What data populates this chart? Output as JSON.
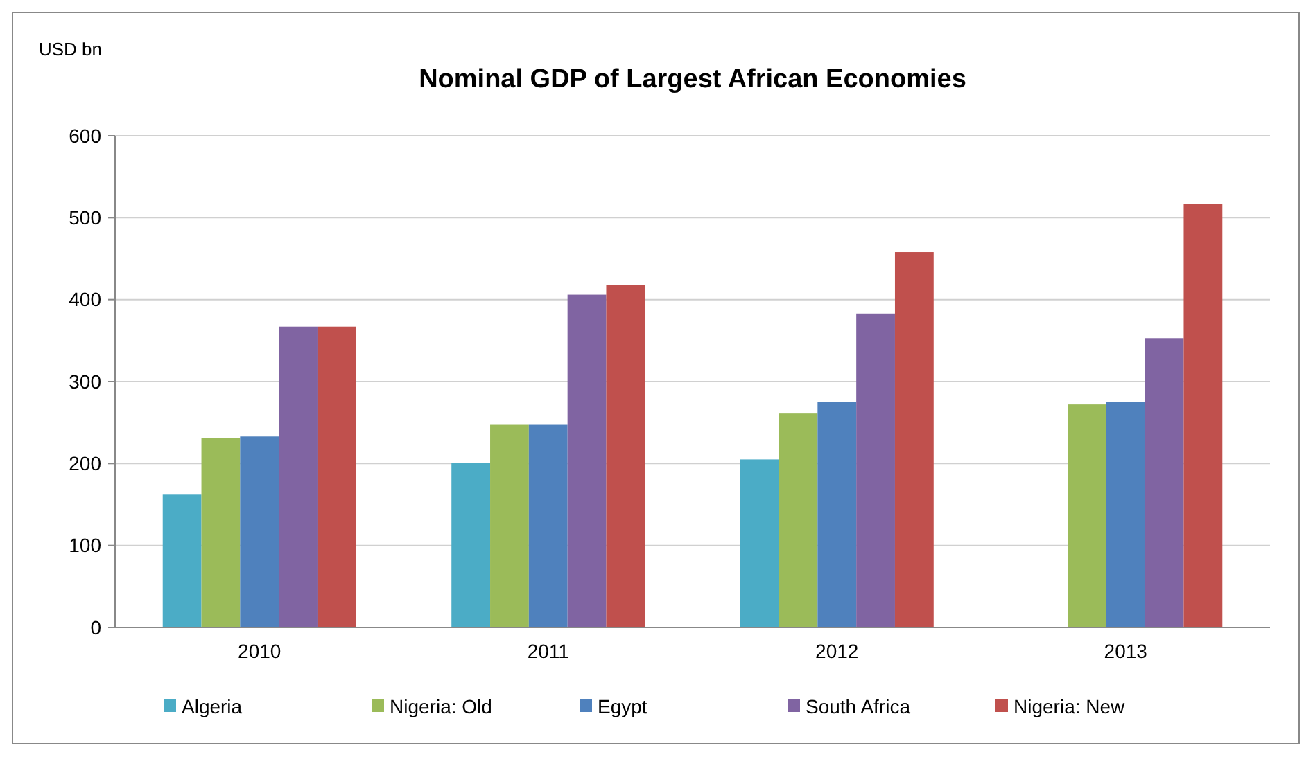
{
  "chart_data": {
    "type": "bar",
    "title": "Nominal GDP of Largest African Economies",
    "ylabel": "USD bn",
    "categories": [
      "2010",
      "2011",
      "2012",
      "2013"
    ],
    "series": [
      {
        "name": "Algeria",
        "color": "#4bacc6",
        "values": [
          162,
          201,
          205,
          null
        ]
      },
      {
        "name": "Nigeria: Old",
        "color": "#9bbb59",
        "values": [
          231,
          248,
          261,
          272
        ]
      },
      {
        "name": "Egypt",
        "color": "#4f81bd",
        "values": [
          233,
          248,
          275,
          275
        ]
      },
      {
        "name": "South Africa",
        "color": "#8064a2",
        "values": [
          367,
          406,
          383,
          353
        ]
      },
      {
        "name": "Nigeria: New",
        "color": "#c0504d",
        "values": [
          367,
          418,
          458,
          517
        ]
      }
    ],
    "ylim": [
      0,
      600
    ],
    "yticks": [
      0,
      100,
      200,
      300,
      400,
      500,
      600
    ],
    "grid": "y",
    "legend": "bottom"
  }
}
